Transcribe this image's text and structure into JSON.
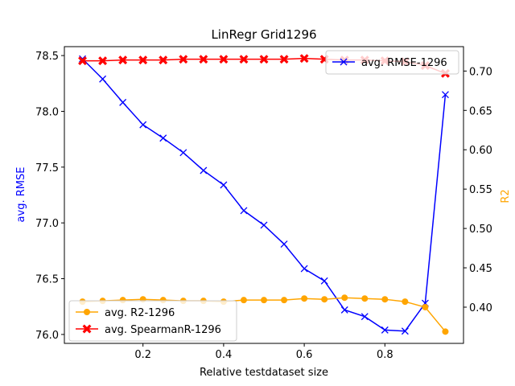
{
  "chart_data": {
    "type": "line",
    "title": "LinRegr Grid1296",
    "xlabel": "Relative testdataset size",
    "ylabel_left": "avg. RMSE",
    "ylabel_right": "R2",
    "xlim": [
      0.005,
      0.995
    ],
    "ylim_left": [
      75.92,
      78.58
    ],
    "ylim_right": [
      0.354,
      0.731
    ],
    "x_ticks": [
      "0.2",
      "0.4",
      "0.6",
      "0.8"
    ],
    "y_left_ticks": [
      "76.0",
      "76.5",
      "77.0",
      "77.5",
      "78.0",
      "78.5"
    ],
    "y_right_ticks": [
      "0.40",
      "0.45",
      "0.50",
      "0.55",
      "0.60",
      "0.65",
      "0.70"
    ],
    "grid": false,
    "x": [
      0.05,
      0.1,
      0.15,
      0.2,
      0.25,
      0.3,
      0.35,
      0.4,
      0.45,
      0.5,
      0.55,
      0.6,
      0.65,
      0.7,
      0.75,
      0.8,
      0.85,
      0.9,
      0.95
    ],
    "series": [
      {
        "name": "avg. RMSE-1296",
        "axis": "left",
        "color": "#0000ff",
        "marker": "x",
        "values": [
          78.47,
          78.29,
          78.08,
          77.88,
          77.76,
          77.63,
          77.47,
          77.34,
          77.11,
          76.98,
          76.81,
          76.59,
          76.48,
          76.22,
          76.16,
          76.04,
          76.03,
          76.28,
          78.15
        ]
      },
      {
        "name": "avg. R2-1296",
        "axis": "right",
        "color": "#ffa500",
        "marker": "o",
        "values": [
          0.407,
          0.408,
          0.409,
          0.41,
          0.409,
          0.408,
          0.408,
          0.407,
          0.409,
          0.409,
          0.409,
          0.411,
          0.41,
          0.412,
          0.411,
          0.41,
          0.407,
          0.4,
          0.369
        ]
      },
      {
        "name": "avg. SpearmanR-1296",
        "axis": "right",
        "color": "#ff0000",
        "marker": "X",
        "values": [
          0.713,
          0.713,
          0.714,
          0.714,
          0.714,
          0.715,
          0.715,
          0.715,
          0.715,
          0.715,
          0.715,
          0.716,
          0.715,
          0.714,
          0.714,
          0.713,
          0.712,
          0.707,
          0.697
        ]
      }
    ],
    "legends": {
      "upper_right": [
        "avg. RMSE-1296"
      ],
      "lower_left": [
        "avg. R2-1296",
        "avg. SpearmanR-1296"
      ]
    }
  }
}
